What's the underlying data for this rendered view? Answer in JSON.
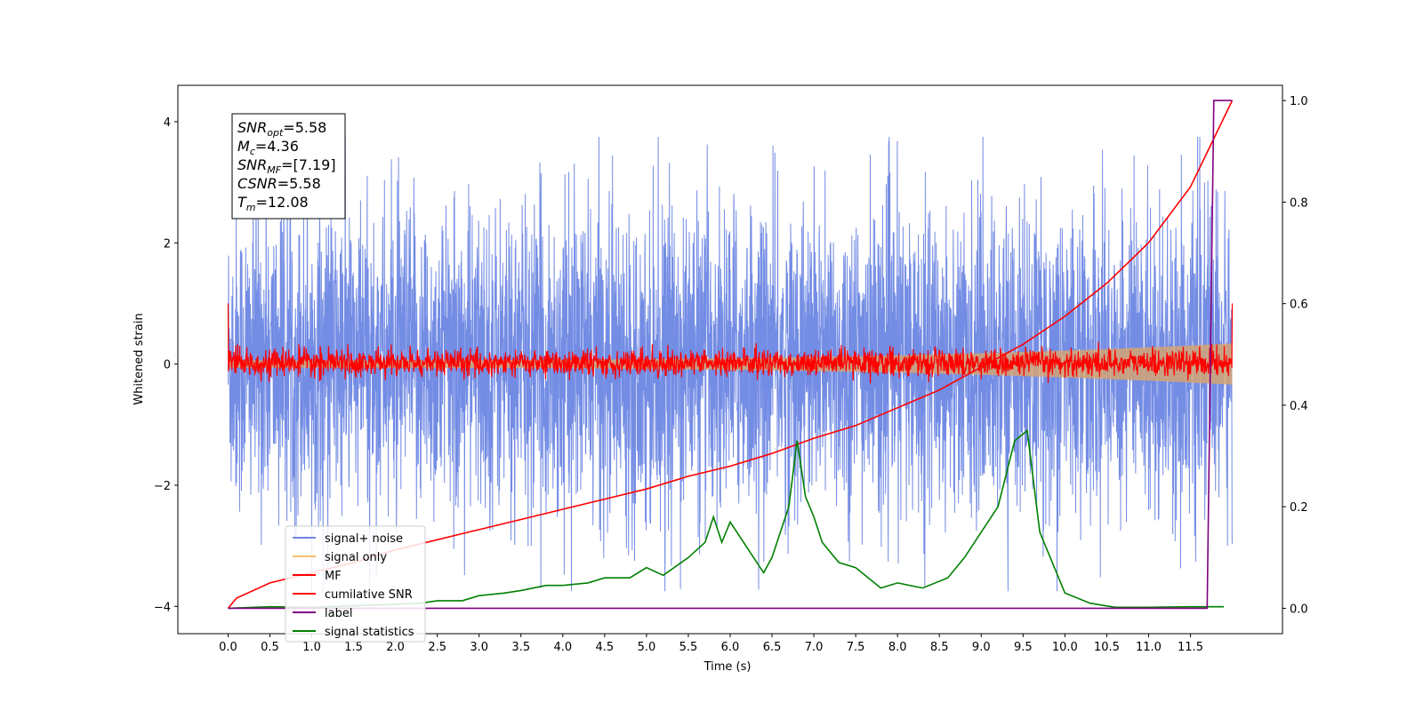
{
  "chart_data": {
    "type": "line",
    "xlabel": "Time (s)",
    "ylabel": "Whitened strain",
    "xlim": [
      -0.6,
      12.6
    ],
    "ylim": [
      -4.45,
      4.6
    ],
    "y2lim": [
      -0.05,
      1.03
    ],
    "x_ticks": [
      "0.0",
      "0.5",
      "1.0",
      "1.5",
      "2.0",
      "2.5",
      "3.0",
      "3.5",
      "4.0",
      "4.5",
      "5.0",
      "5.5",
      "6.0",
      "6.5",
      "7.0",
      "7.5",
      "8.0",
      "8.5",
      "9.0",
      "9.5",
      "10.0",
      "10.5",
      "11.0",
      "11.5"
    ],
    "y_ticks": [
      "4",
      "2",
      "0",
      "−2",
      "−4"
    ],
    "y2_ticks": [
      "1.0",
      "0.8",
      "0.6",
      "0.4",
      "0.2",
      "0.0"
    ],
    "legend": [
      {
        "label": "signal+ noise",
        "color": "#6b86e3"
      },
      {
        "label": "signal only",
        "color": "#f5c26b"
      },
      {
        "label": "MF",
        "color": "#ff0000"
      },
      {
        "label": "cumilative SNR",
        "color": "#ff0000"
      },
      {
        "label": "label",
        "color": "#800080"
      },
      {
        "label": "signal statistics",
        "color": "#008000"
      }
    ],
    "annotation": [
      {
        "var": "SNR",
        "sub": "opt",
        "val": "=5.58"
      },
      {
        "var": "M",
        "sub": "c",
        "val": "=4.36"
      },
      {
        "var": "SNR",
        "sub": "MF",
        "val": "=[7.19]"
      },
      {
        "var": "CSNR",
        "sub": "",
        "val": "=5.58"
      },
      {
        "var": "T",
        "sub": "m",
        "val": "=12.08"
      }
    ],
    "series": [
      {
        "name": "signal+ noise",
        "axis": "left",
        "color": "#6b86e3",
        "description": "whitened noisy strain, approx range -3.8 to 3.8 from t=0 to 12"
      },
      {
        "name": "signal only",
        "axis": "left",
        "color": "#f5c26b",
        "description": "chirp signal growing in amplitude toward t=12, amplitude ~0.35"
      },
      {
        "name": "MF",
        "axis": "left",
        "color": "#ff0000",
        "x": [
          0,
          0.01,
          12.0,
          12.0
        ],
        "y": [
          1.0,
          0.1,
          0.1,
          1.0
        ],
        "description": "matched filter output noise around 0, range about -0.3 to 0.4"
      },
      {
        "name": "cumilative SNR",
        "axis": "right",
        "color": "#ff0000",
        "x": [
          0,
          0.1,
          0.5,
          1,
          1.5,
          2,
          2.5,
          3,
          3.5,
          4,
          4.5,
          5,
          5.5,
          6,
          6.5,
          7,
          7.5,
          8,
          8.5,
          9,
          9.5,
          10,
          10.5,
          11,
          11.5,
          12
        ],
        "y": [
          0.0,
          0.02,
          0.05,
          0.07,
          0.09,
          0.115,
          0.135,
          0.155,
          0.175,
          0.195,
          0.215,
          0.235,
          0.26,
          0.28,
          0.305,
          0.335,
          0.36,
          0.395,
          0.43,
          0.475,
          0.52,
          0.575,
          0.64,
          0.72,
          0.83,
          1.0
        ]
      },
      {
        "name": "label",
        "axis": "right",
        "color": "#800080",
        "x": [
          0,
          11.7,
          11.78,
          12.0
        ],
        "y": [
          0.0,
          0.0,
          1.0,
          1.0
        ]
      },
      {
        "name": "signal statistics",
        "axis": "right",
        "color": "#008000",
        "x": [
          0,
          0.5,
          1,
          1.5,
          2,
          2.3,
          2.5,
          2.8,
          3,
          3.3,
          3.5,
          3.8,
          4,
          4.3,
          4.5,
          4.8,
          5,
          5.2,
          5.5,
          5.7,
          5.8,
          5.9,
          6.0,
          6.2,
          6.4,
          6.5,
          6.7,
          6.8,
          6.9,
          7.0,
          7.1,
          7.3,
          7.5,
          7.8,
          8.0,
          8.3,
          8.6,
          8.8,
          9.0,
          9.2,
          9.4,
          9.55,
          9.7,
          10.0,
          10.3,
          10.6,
          11.0,
          11.5,
          11.9
        ],
        "y": [
          0.0,
          0.003,
          0.002,
          0.005,
          0.008,
          0.01,
          0.015,
          0.015,
          0.025,
          0.03,
          0.035,
          0.045,
          0.045,
          0.05,
          0.06,
          0.06,
          0.08,
          0.065,
          0.1,
          0.13,
          0.18,
          0.13,
          0.17,
          0.12,
          0.07,
          0.1,
          0.2,
          0.33,
          0.22,
          0.18,
          0.13,
          0.09,
          0.08,
          0.04,
          0.05,
          0.04,
          0.06,
          0.1,
          0.15,
          0.2,
          0.33,
          0.35,
          0.15,
          0.03,
          0.01,
          0.002,
          0.002,
          0.003,
          0.003
        ]
      }
    ]
  }
}
